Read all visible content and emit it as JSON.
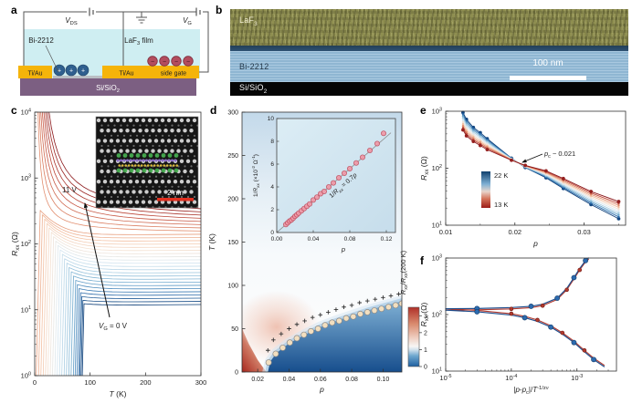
{
  "panel_labels": {
    "a": "a",
    "b": "b",
    "c": "c",
    "d": "d",
    "e": "e",
    "f": "f"
  },
  "panel_a": {
    "vds_label": "*V*_{DS}",
    "vg_label": "*V*_{G}",
    "film_label": "LaF_{3} film",
    "channel_label": "Bi-2212",
    "contact_left_label": "Ti/Au",
    "contact_right_label": "Ti/Au",
    "side_gate_label": "side gate",
    "substrate_label": "Si/SiO_{2}",
    "hole_sign": "+",
    "electron_sign": "−",
    "colors": {
      "film": "#cfeef2",
      "gold": "#f5b40a",
      "substrate": "#7c5f82",
      "hole": "#2f5f8f",
      "electron": "#b34d5e",
      "strip": "#b9bec4",
      "wire": "#555555"
    }
  },
  "panel_b": {
    "film_label": "LaF_{3}",
    "channel_label": "Bi-2212",
    "substrate_label": "Si/SiO_{2}",
    "scalebar_label": "100 nm"
  },
  "chart_data": [
    {
      "id": "c",
      "type": "line",
      "xlabel": "*T* (K)",
      "ylabel": "*R*_{xx} (Ω)",
      "xlim": [
        0,
        300
      ],
      "ylog": true,
      "ylim": [
        1,
        10000
      ],
      "xticks": [
        0,
        100,
        200,
        300
      ],
      "ytick_labels": [
        "10^{0}",
        "10^{1}",
        "10^{2}",
        "10^{3}",
        "10^{4}"
      ],
      "annotation_top": "11 V",
      "annotation_bottom": "*V*_{G} = 0 V",
      "inset_scalebar": "2 nm",
      "colormap": [
        "#0b3d77",
        "#2e6fad",
        "#6aa6cc",
        "#a8cde2",
        "#d9e8f1",
        "#f3e3d5",
        "#f3c0a2",
        "#e08a6a",
        "#c04a3a",
        "#8a1518"
      ],
      "curves_r300": [
        12,
        13.4,
        15,
        16.8,
        18.8,
        21,
        23.5,
        26.3,
        29.4,
        32.8,
        36.7,
        41,
        45.9,
        51.3,
        57.4,
        64.1,
        71.7,
        80.2,
        89.6,
        100,
        112,
        125,
        140,
        157,
        175,
        196,
        219,
        245,
        274,
        306,
        342
      ],
      "curves_tc": [
        89,
        87,
        85,
        83,
        80,
        77,
        74,
        70,
        66,
        62,
        58,
        54,
        50,
        46,
        42,
        38,
        34,
        30,
        26,
        22,
        18,
        14,
        10,
        0,
        0,
        0,
        0,
        0,
        0,
        0,
        0
      ],
      "curves_ea": [
        0,
        0,
        0,
        0,
        0,
        0,
        0,
        0,
        0,
        0,
        0,
        0,
        0,
        0,
        0,
        0,
        0,
        0,
        0,
        0,
        0,
        0,
        0,
        25,
        35,
        45,
        55,
        65,
        75,
        85,
        95
      ]
    },
    {
      "id": "d",
      "type": "heatmap",
      "xlabel": "*p*",
      "ylabel": "*T* (K)",
      "xlim": [
        0.01,
        0.112
      ],
      "ylim": [
        0,
        300
      ],
      "xticks": [
        0.02,
        0.04,
        0.06,
        0.08,
        0.1
      ],
      "yticks": [
        0,
        50,
        100,
        150,
        200,
        250,
        300
      ],
      "colorbar": {
        "label": "*R*_{xx}/*R*_{xx}(200 K)",
        "ticks": [
          0,
          1,
          2,
          3
        ],
        "max": 3.5,
        "stops": [
          "#1e5fa0",
          "#6ea7cf",
          "#cfe0ec",
          "#f7f6f4",
          "#eecabb",
          "#d98a6e",
          "#b03028"
        ],
        "stop_pos": [
          0,
          0.18,
          0.28,
          0.34,
          0.5,
          0.72,
          1
        ]
      },
      "dome_p": [
        0.027,
        0.0315,
        0.036,
        0.0405,
        0.045,
        0.0495,
        0.054,
        0.0585,
        0.063,
        0.0675,
        0.072,
        0.0765,
        0.081,
        0.0855,
        0.09,
        0.0945,
        0.099,
        0.1035,
        0.108,
        0.112
      ],
      "dome_T": [
        11,
        21,
        28,
        34,
        39,
        43,
        47,
        50,
        54,
        57,
        59,
        62,
        64,
        67,
        69,
        71,
        73,
        75,
        77,
        79
      ],
      "plus_p": [
        0.0265,
        0.03,
        0.035,
        0.04,
        0.045,
        0.05,
        0.055,
        0.06,
        0.065,
        0.07,
        0.075,
        0.08,
        0.085,
        0.09,
        0.095,
        0.1,
        0.105,
        0.11
      ],
      "plus_T": [
        14,
        26,
        33,
        39,
        44,
        48,
        52,
        55,
        58,
        61,
        64,
        66,
        69,
        71,
        73,
        75,
        77,
        79
      ],
      "boundary_p": [
        0.0265,
        0.028,
        0.032,
        0.04,
        0.05,
        0.06,
        0.07,
        0.08,
        0.09,
        0.1,
        0.112
      ],
      "boundary_T": [
        0,
        12,
        22,
        33,
        43,
        52,
        59,
        65,
        71,
        76,
        82
      ]
    },
    {
      "id": "d_inset",
      "type": "scatter",
      "xlabel": "*p*",
      "ylabel": "1/*R*_{xx} (×10^{-2} Ω^{-1})",
      "xlim": [
        0,
        0.13
      ],
      "ylim": [
        0,
        10
      ],
      "xticks": [
        0.0,
        0.04,
        0.08,
        0.12
      ],
      "yticks": [
        0,
        2,
        4,
        6,
        8,
        10
      ],
      "fit_label": "1/*R*_{xx} = 0.7*p*",
      "fit_slope": 0.7,
      "p": [
        0.01,
        0.012,
        0.014,
        0.016,
        0.018,
        0.02,
        0.022,
        0.024,
        0.027,
        0.03,
        0.033,
        0.036,
        0.04,
        0.044,
        0.048,
        0.052,
        0.057,
        0.062,
        0.068,
        0.074,
        0.08,
        0.087,
        0.094,
        0.102,
        0.11,
        0.117
      ],
      "v": [
        0.7,
        0.85,
        1.0,
        1.1,
        1.25,
        1.42,
        1.55,
        1.7,
        1.9,
        2.1,
        2.3,
        2.5,
        2.85,
        3.1,
        3.4,
        3.6,
        4.0,
        4.35,
        4.8,
        5.2,
        5.6,
        6.1,
        6.6,
        7.2,
        7.8,
        8.7
      ]
    },
    {
      "id": "e",
      "type": "line",
      "xlabel": "*p*",
      "ylabel": "*R*_{xx} (Ω)",
      "xlim": [
        0.01,
        0.036
      ],
      "ylog": true,
      "ylim": [
        10,
        1000
      ],
      "xticks": [
        0.01,
        0.02,
        0.03
      ],
      "ytick_labels": [
        "10^{1}",
        "10^{2}",
        "10^{3}"
      ],
      "annotation": "*p*_{c} ~ 0.021",
      "legend": {
        "top": "22 K",
        "bottom": "13 K"
      },
      "p": [
        0.0125,
        0.013,
        0.014,
        0.015,
        0.016,
        0.0195,
        0.0215,
        0.0245,
        0.027,
        0.031,
        0.035
      ],
      "series": [
        {
          "name": "22 K",
          "values": [
            950,
            720,
            520,
            420,
            330,
            150,
            103,
            68,
            44,
            23,
            13
          ]
        },
        {
          "name": "13 K",
          "values": [
            470,
            370,
            295,
            250,
            212,
            138,
            112,
            90,
            66,
            39,
            26
          ]
        }
      ],
      "n_curves": 10
    },
    {
      "id": "f",
      "type": "line",
      "xlabel": "|*p*-*p*_{c}|/*T*^{-1/zν}",
      "ylabel": "*R*_{xx} (Ω)",
      "xlog": true,
      "xlim": [
        1e-05,
        0.004
      ],
      "ylog": true,
      "ylim": [
        10,
        1000
      ],
      "xtick_labels": [
        "10^{-5}",
        "10^{-4}",
        "10^{-3}"
      ],
      "ytick_labels": [
        "10^{1}",
        "10^{2}",
        "10^{3}"
      ],
      "upper_x": [
        1e-05,
        3e-05,
        0.0001,
        0.0002,
        0.0003,
        0.0005,
        0.0007,
        0.0009,
        0.0011,
        0.00135,
        0.0015
      ],
      "upper_y": [
        127,
        128,
        133,
        140,
        152,
        195,
        290,
        450,
        650,
        900,
        1000
      ],
      "lower_x": [
        1e-05,
        3e-05,
        0.0001,
        0.00016,
        0.00025,
        0.0004,
        0.0006,
        0.0009,
        0.0013,
        0.0018,
        0.0026
      ],
      "lower_y": [
        120,
        112,
        98,
        88,
        76,
        60,
        45,
        32,
        22,
        16,
        12
      ],
      "colors": {
        "navy": "#1f4e8c",
        "red": "#b23a2e",
        "marker_blue": "#2c6bb0"
      }
    }
  ]
}
